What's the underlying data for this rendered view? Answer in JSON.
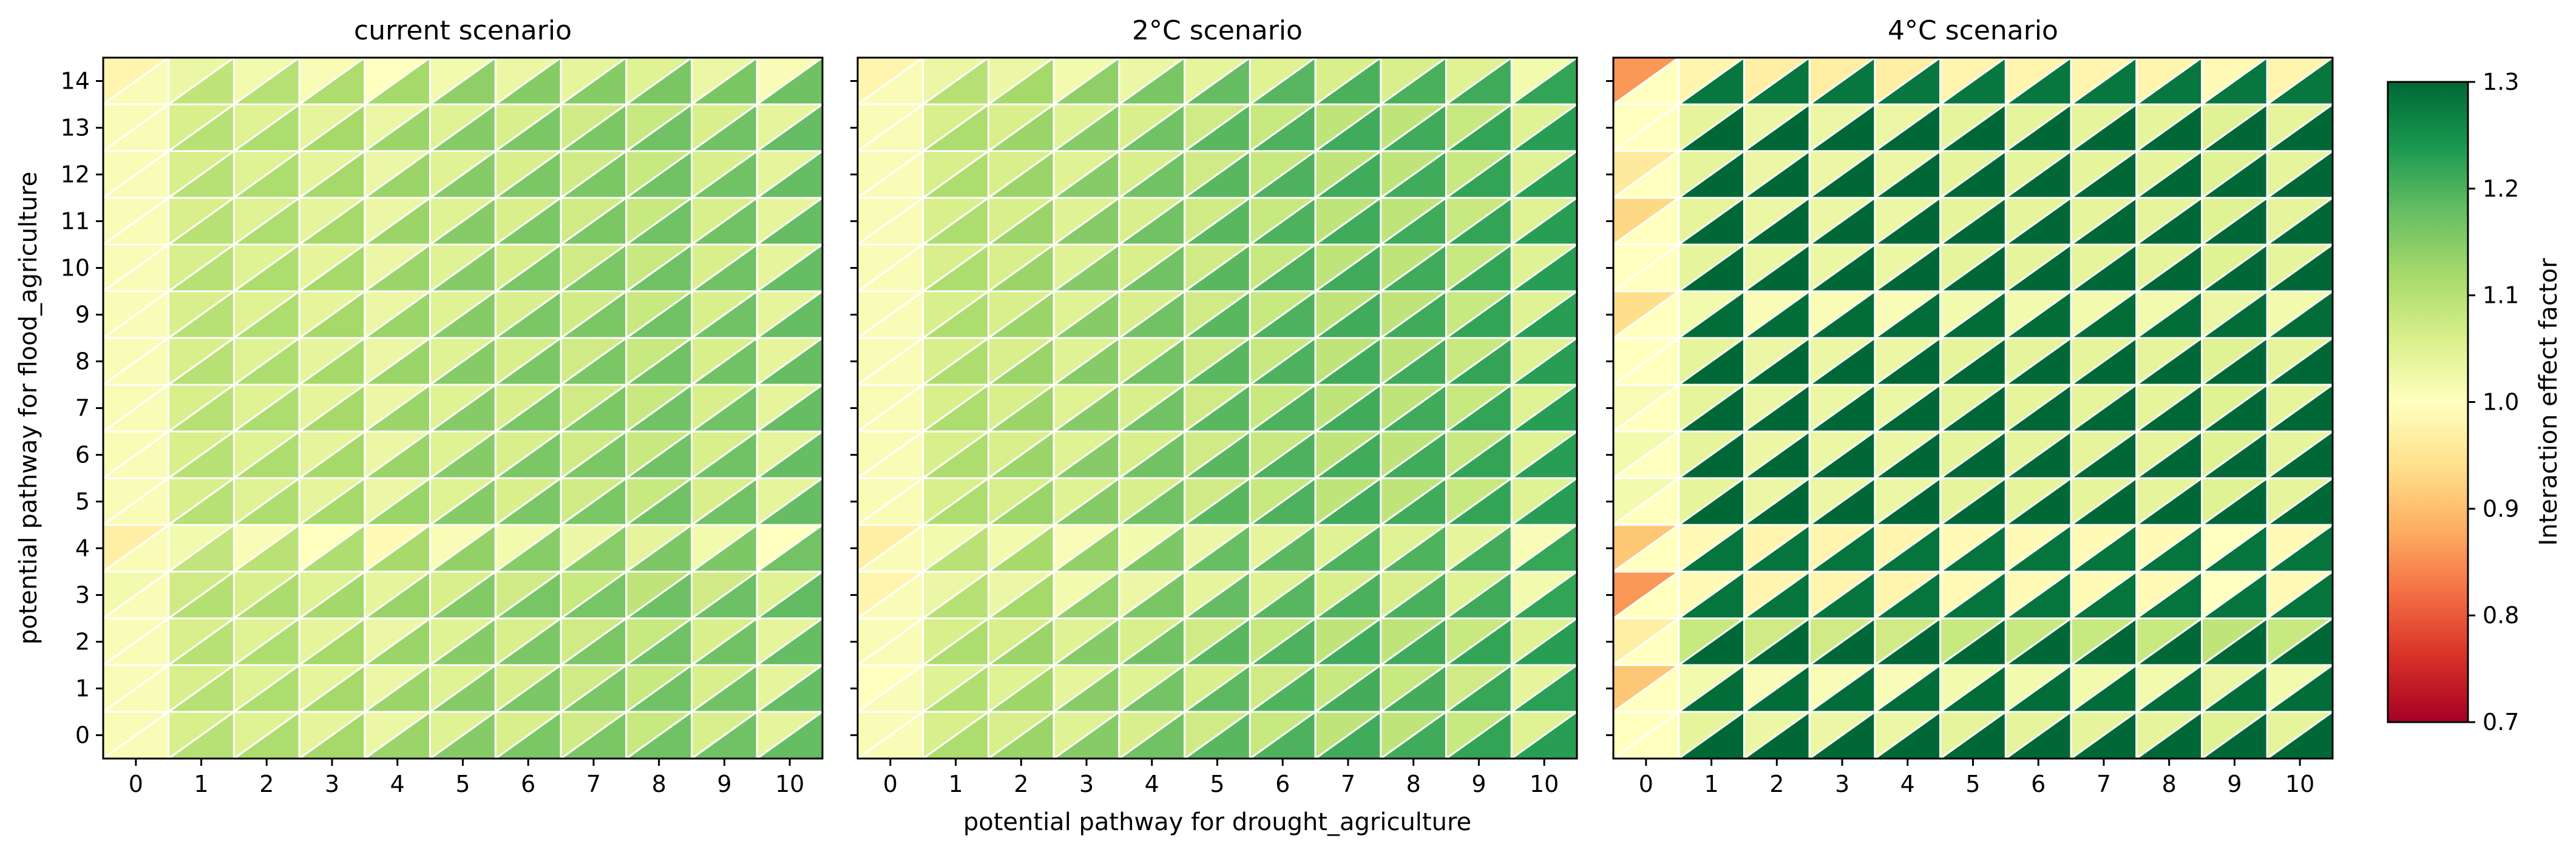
{
  "chart_data": {
    "type": "heatmap",
    "subtype": "split-cell triangle heatmap",
    "x_ticks": [
      0,
      1,
      2,
      3,
      4,
      5,
      6,
      7,
      8,
      9,
      10
    ],
    "y_ticks": [
      0,
      1,
      2,
      3,
      4,
      5,
      6,
      7,
      8,
      9,
      10,
      11,
      12,
      13,
      14
    ],
    "xlabel": "potential pathway for drought_agriculture",
    "ylabel": "potential pathway for flood_agriculture",
    "colormap": "RdYlGn",
    "vmin": 0.7,
    "vmax": 1.3,
    "colorbar": {
      "label": "Interaction effect factor",
      "ticks": [
        "0.7",
        "0.8",
        "0.9",
        "1.0",
        "1.1",
        "1.2",
        "1.3"
      ]
    },
    "panels": [
      {
        "title": "current scenario",
        "upper_triangle_by_column": [
          1.01,
          1.06,
          1.05,
          1.04,
          1.03,
          1.05,
          1.06,
          1.07,
          1.08,
          1.06,
          1.04
        ],
        "lower_triangle_by_column": [
          1.01,
          1.1,
          1.11,
          1.12,
          1.13,
          1.15,
          1.16,
          1.16,
          1.17,
          1.17,
          1.18
        ],
        "row_modifier_by_row": [
          0,
          0,
          0,
          0.01,
          -0.04,
          0,
          0,
          0,
          0,
          0,
          0,
          0,
          0,
          0,
          -0.03
        ]
      },
      {
        "title": "2°C scenario",
        "upper_triangle_by_column": [
          1.01,
          1.06,
          1.06,
          1.05,
          1.06,
          1.07,
          1.08,
          1.09,
          1.09,
          1.08,
          1.05
        ],
        "lower_triangle_by_column": [
          1.01,
          1.11,
          1.13,
          1.15,
          1.17,
          1.19,
          1.2,
          1.21,
          1.21,
          1.22,
          1.23
        ],
        "row_modifier_by_row": [
          0,
          -0.01,
          0,
          -0.03,
          -0.04,
          0,
          0,
          0,
          0,
          0,
          0,
          0,
          0,
          0,
          -0.03
        ]
      },
      {
        "title": "4°C scenario",
        "upper_triangle_by_column": [
          1.0,
          1.04,
          1.03,
          1.03,
          1.03,
          1.04,
          1.04,
          1.04,
          1.04,
          1.05,
          1.04
        ],
        "lower_triangle_by_column": [
          1.0,
          1.3,
          1.3,
          1.3,
          1.3,
          1.3,
          1.3,
          1.3,
          1.3,
          1.3,
          1.3
        ],
        "upper_triangle_column0_by_row": [
          1.0,
          0.91,
          0.97,
          0.86,
          0.91,
          1.02,
          1.02,
          1.01,
          1.0,
          0.94,
          1.0,
          0.93,
          0.96,
          1.0,
          0.86
        ],
        "row_modifier_by_row": [
          0,
          -0.02,
          0.04,
          -0.05,
          -0.05,
          0,
          0,
          0,
          0,
          -0.02,
          0,
          0,
          0,
          0,
          -0.06
        ]
      }
    ]
  }
}
